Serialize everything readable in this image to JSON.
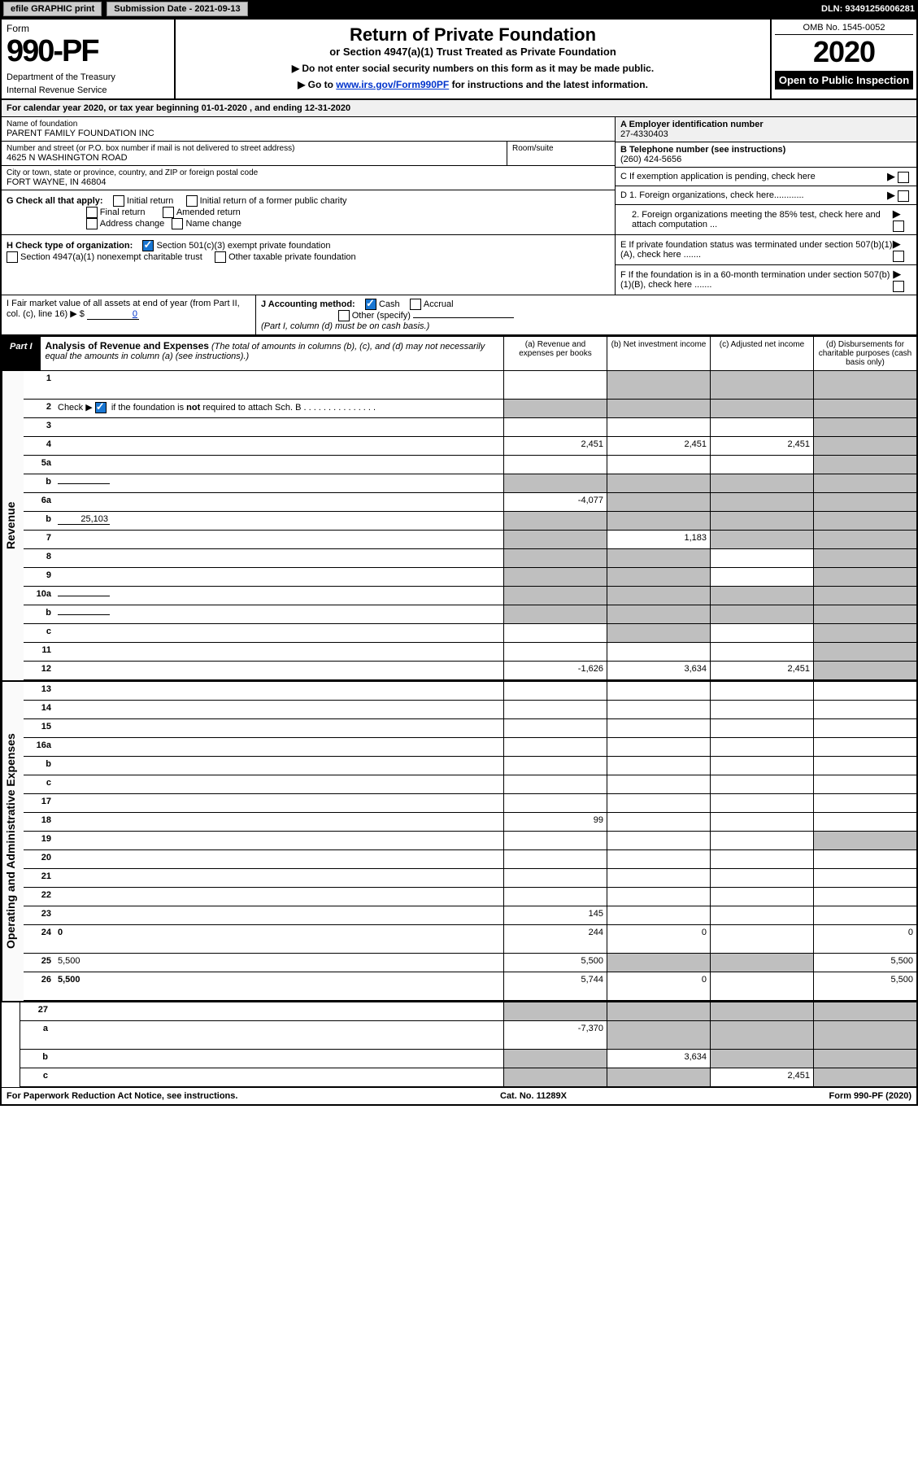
{
  "topbar": {
    "efile": "efile GRAPHIC print",
    "submission_label": "Submission Date - 2021-09-13",
    "dln": "DLN: 93491256006281"
  },
  "header": {
    "form_word": "Form",
    "form_number": "990-PF",
    "dept1": "Department of the Treasury",
    "dept2": "Internal Revenue Service",
    "title": "Return of Private Foundation",
    "subtitle": "or Section 4947(a)(1) Trust Treated as Private Foundation",
    "instr1": "▶ Do not enter social security numbers on this form as it may be made public.",
    "instr2_prefix": "▶ Go to ",
    "instr2_link": "www.irs.gov/Form990PF",
    "instr2_suffix": " for instructions and the latest information.",
    "omb": "OMB No. 1545-0052",
    "year": "2020",
    "open": "Open to Public Inspection"
  },
  "cal_year": "For calendar year 2020, or tax year beginning 01-01-2020                    , and ending 12-31-2020",
  "entity": {
    "name_label": "Name of foundation",
    "name": "PARENT FAMILY FOUNDATION INC",
    "addr_label": "Number and street (or P.O. box number if mail is not delivered to street address)",
    "addr": "4625 N WASHINGTON ROAD",
    "room_label": "Room/suite",
    "city_label": "City or town, state or province, country, and ZIP or foreign postal code",
    "city": "FORT WAYNE, IN  46804",
    "a_label": "A Employer identification number",
    "a_val": "27-4330403",
    "b_label": "B Telephone number (see instructions)",
    "b_val": "(260) 424-5656",
    "c_label": "C If exemption application is pending, check here"
  },
  "checks": {
    "g_label": "G Check all that apply:",
    "g_opts": [
      "Initial return",
      "Initial return of a former public charity",
      "Final return",
      "Amended return",
      "Address change",
      "Name change"
    ],
    "h_label": "H Check type of organization:",
    "h1": "Section 501(c)(3) exempt private foundation",
    "h2": "Section 4947(a)(1) nonexempt charitable trust",
    "h3": "Other taxable private foundation",
    "i_label": "I Fair market value of all assets at end of year (from Part II, col. (c), line 16) ▶ $",
    "i_val": "0",
    "j_label": "J Accounting method:",
    "j_cash": "Cash",
    "j_accrual": "Accrual",
    "j_other": "Other (specify)",
    "j_note": "(Part I, column (d) must be on cash basis.)",
    "d1": "D 1. Foreign organizations, check here............",
    "d2": "2. Foreign organizations meeting the 85% test, check here and attach computation ...",
    "e": "E  If private foundation status was terminated under section 507(b)(1)(A), check here .......",
    "f": "F  If the foundation is in a 60-month termination under section 507(b)(1)(B), check here .......",
    "arrow": "▶"
  },
  "part1": {
    "label": "Part I",
    "title_bold": "Analysis of Revenue and Expenses",
    "title_rest": " (The total of amounts in columns (b), (c), and (d) may not necessarily equal the amounts in column (a) (see instructions).)",
    "col_a": "(a)  Revenue and expenses per books",
    "col_b": "(b)  Net investment income",
    "col_c": "(c)  Adjusted net income",
    "col_d": "(d)  Disbursements for charitable purposes (cash basis only)"
  },
  "side_labels": {
    "revenue": "Revenue",
    "expenses": "Operating and Administrative Expenses"
  },
  "rows": [
    {
      "n": "1",
      "d": "",
      "a": "",
      "b": "",
      "c": "",
      "shade": [
        "b",
        "c",
        "d"
      ],
      "tall": true
    },
    {
      "n": "2",
      "d": "",
      "a": "",
      "b": "",
      "c": "",
      "shade": [
        "a",
        "b",
        "c",
        "d"
      ],
      "chk": true
    },
    {
      "n": "3",
      "d": "",
      "a": "",
      "b": "",
      "c": "",
      "shade": [
        "d"
      ]
    },
    {
      "n": "4",
      "d": "",
      "a": "2,451",
      "b": "2,451",
      "c": "2,451",
      "shade": [
        "d"
      ]
    },
    {
      "n": "5a",
      "d": "",
      "a": "",
      "b": "",
      "c": "",
      "shade": [
        "d"
      ]
    },
    {
      "n": "b",
      "d": "",
      "a": "",
      "b": "",
      "c": "",
      "shade": [
        "a",
        "b",
        "c",
        "d"
      ],
      "inline": ""
    },
    {
      "n": "6a",
      "d": "",
      "a": "-4,077",
      "b": "",
      "c": "",
      "shade": [
        "b",
        "c",
        "d"
      ]
    },
    {
      "n": "b",
      "d": "",
      "a": "",
      "b": "",
      "c": "",
      "shade": [
        "a",
        "b",
        "c",
        "d"
      ],
      "inline": "25,103"
    },
    {
      "n": "7",
      "d": "",
      "a": "",
      "b": "1,183",
      "c": "",
      "shade": [
        "a",
        "c",
        "d"
      ]
    },
    {
      "n": "8",
      "d": "",
      "a": "",
      "b": "",
      "c": "",
      "shade": [
        "a",
        "b",
        "d"
      ]
    },
    {
      "n": "9",
      "d": "",
      "a": "",
      "b": "",
      "c": "",
      "shade": [
        "a",
        "b",
        "d"
      ]
    },
    {
      "n": "10a",
      "d": "",
      "a": "",
      "b": "",
      "c": "",
      "shade": [
        "a",
        "b",
        "c",
        "d"
      ],
      "inline": ""
    },
    {
      "n": "b",
      "d": "",
      "a": "",
      "b": "",
      "c": "",
      "shade": [
        "a",
        "b",
        "c",
        "d"
      ],
      "inline": ""
    },
    {
      "n": "c",
      "d": "",
      "a": "",
      "b": "",
      "c": "",
      "shade": [
        "b",
        "d"
      ]
    },
    {
      "n": "11",
      "d": "",
      "a": "",
      "b": "",
      "c": "",
      "shade": [
        "d"
      ]
    },
    {
      "n": "12",
      "d": "",
      "a": "-1,626",
      "b": "3,634",
      "c": "2,451",
      "bold": true,
      "shade": [
        "d"
      ]
    }
  ],
  "exp_rows": [
    {
      "n": "13",
      "d": "",
      "a": "",
      "b": "",
      "c": ""
    },
    {
      "n": "14",
      "d": "",
      "a": "",
      "b": "",
      "c": ""
    },
    {
      "n": "15",
      "d": "",
      "a": "",
      "b": "",
      "c": ""
    },
    {
      "n": "16a",
      "d": "",
      "a": "",
      "b": "",
      "c": ""
    },
    {
      "n": "b",
      "d": "",
      "a": "",
      "b": "",
      "c": ""
    },
    {
      "n": "c",
      "d": "",
      "a": "",
      "b": "",
      "c": ""
    },
    {
      "n": "17",
      "d": "",
      "a": "",
      "b": "",
      "c": ""
    },
    {
      "n": "18",
      "d": "",
      "a": "99",
      "b": "",
      "c": ""
    },
    {
      "n": "19",
      "d": "",
      "a": "",
      "b": "",
      "c": "",
      "shade": [
        "d"
      ]
    },
    {
      "n": "20",
      "d": "",
      "a": "",
      "b": "",
      "c": ""
    },
    {
      "n": "21",
      "d": "",
      "a": "",
      "b": "",
      "c": ""
    },
    {
      "n": "22",
      "d": "",
      "a": "",
      "b": "",
      "c": ""
    },
    {
      "n": "23",
      "d": "",
      "a": "145",
      "b": "",
      "c": ""
    },
    {
      "n": "24",
      "d": "0",
      "a": "244",
      "b": "0",
      "c": "",
      "bold": true,
      "tall": true
    },
    {
      "n": "25",
      "d": "5,500",
      "a": "5,500",
      "b": "",
      "c": "",
      "shade": [
        "b",
        "c"
      ]
    },
    {
      "n": "26",
      "d": "5,500",
      "a": "5,744",
      "b": "0",
      "c": "",
      "bold": true,
      "tall": true
    }
  ],
  "final_rows": [
    {
      "n": "27",
      "d": "",
      "a": "",
      "b": "",
      "c": "",
      "shade": [
        "a",
        "b",
        "c",
        "d"
      ]
    },
    {
      "n": "a",
      "d": "",
      "a": "-7,370",
      "b": "",
      "c": "",
      "bold": true,
      "shade": [
        "b",
        "c",
        "d"
      ],
      "tall": true
    },
    {
      "n": "b",
      "d": "",
      "a": "",
      "b": "3,634",
      "c": "",
      "bold": true,
      "shade": [
        "a",
        "c",
        "d"
      ]
    },
    {
      "n": "c",
      "d": "",
      "a": "",
      "b": "",
      "c": "2,451",
      "bold": true,
      "shade": [
        "a",
        "b",
        "d"
      ]
    }
  ],
  "footer": {
    "left": "For Paperwork Reduction Act Notice, see instructions.",
    "center": "Cat. No. 11289X",
    "right": "Form 990-PF (2020)"
  }
}
